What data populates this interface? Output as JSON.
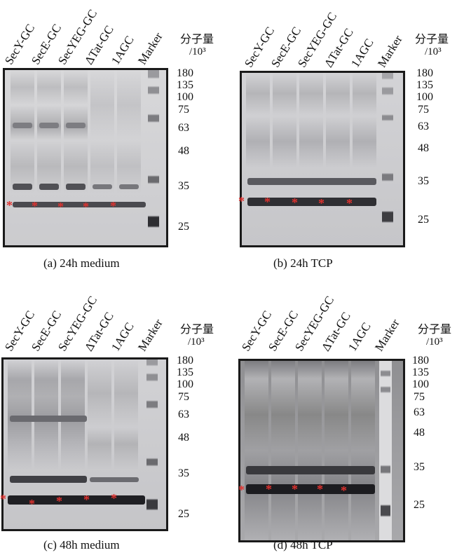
{
  "lanes": [
    "SecY-GC",
    "SecE-GC",
    "SecYEG-GC",
    "ΔTat-GC",
    "1AGC",
    "Marker"
  ],
  "mw_title": "分子量",
  "mw_unit": "/10³",
  "mw_markers": [
    "180",
    "135",
    "100",
    "75",
    "63",
    "48",
    "35",
    "25"
  ],
  "panels": [
    {
      "caption": "(a) 24h medium"
    },
    {
      "caption": "(b) 24h TCP"
    },
    {
      "caption": "(c) 48h medium"
    },
    {
      "caption": "(d) 48h TCP"
    }
  ],
  "star_symbol": "*",
  "colors": {
    "star": "#e0322f",
    "gel_bg": "#c9c9cb",
    "band": "#3b3b3f"
  }
}
